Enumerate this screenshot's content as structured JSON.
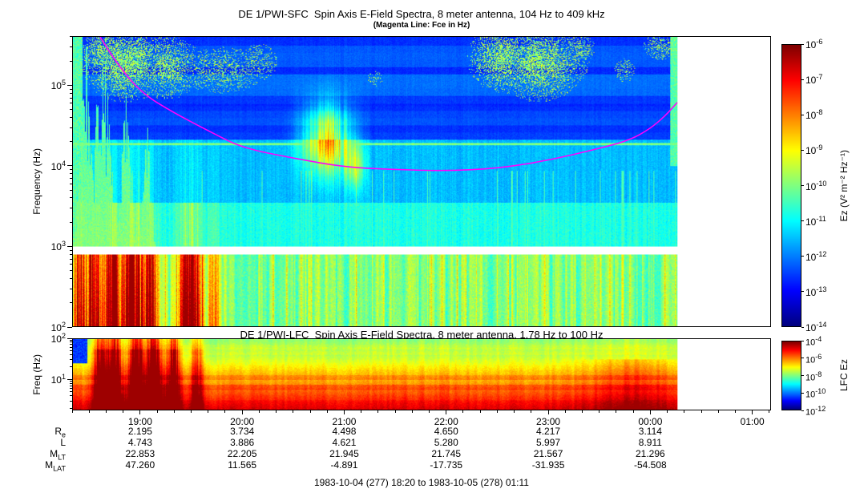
{
  "caption": "1983-10-04 (277) 18:20 to 1983-10-05 (278) 01:11",
  "chart_data": [
    {
      "id": "sfc",
      "type": "heatmap",
      "title": "DE 1/PWI-SFC  Spin Axis E-Field Spectra, 8 meter antenna, 104 Hz to 409 kHz",
      "subtitle": "(Magenta Line: Fce in Hz)",
      "ylabel": "Frequency (Hz)",
      "y_scale": "log",
      "y_range_hz": [
        100,
        409000
      ],
      "y_major_ticks_exp": [
        2,
        3,
        4,
        5
      ],
      "x_start": "18:20",
      "x_end": "01:11",
      "x_start_hours": 18.3333,
      "x_end_hours": 25.1833,
      "data_end_hours": 24.27,
      "x_minor_step_minutes": 10,
      "x_ticks": [
        {
          "hours": 19,
          "label": "19:00"
        },
        {
          "hours": 20,
          "label": "20:00"
        },
        {
          "hours": 21,
          "label": "21:00"
        },
        {
          "hours": 22,
          "label": "22:00"
        },
        {
          "hours": 23,
          "label": "23:00"
        },
        {
          "hours": 24,
          "label": "00:00"
        },
        {
          "hours": 25,
          "label": "01:00"
        }
      ],
      "colorbar": {
        "label": "Ez (V² m⁻² Hz⁻¹)",
        "colormap": "jet",
        "tick_exps": [
          -6,
          -7,
          -8,
          -9,
          -10,
          -11,
          -12,
          -13,
          -14
        ]
      },
      "fce_line": {
        "label": "Fce in Hz",
        "color": "#ff00ff",
        "points_hours_hz": [
          [
            18.6,
            409000
          ],
          [
            18.75,
            200000
          ],
          [
            19.0,
            83000
          ],
          [
            19.3,
            48000
          ],
          [
            19.7,
            26000
          ],
          [
            20.0,
            16800
          ],
          [
            20.5,
            12500
          ],
          [
            21.0,
            9700
          ],
          [
            21.5,
            9000
          ],
          [
            22.0,
            8700
          ],
          [
            22.5,
            9300
          ],
          [
            23.0,
            11700
          ],
          [
            23.5,
            16500
          ],
          [
            23.8,
            21000
          ],
          [
            24.0,
            29000
          ],
          [
            24.15,
            42000
          ],
          [
            24.27,
            62000
          ]
        ]
      },
      "render": {
        "receiver_gap_logf": [
          2.9,
          3.0
        ],
        "interference_line_lf": 4.28,
        "right_strip_start": 24.2,
        "left_strip_end": 18.42,
        "bands": [
          {
            "lf_max": 2.9,
            "base": 0.5,
            "name": "low-band-green"
          },
          {
            "lf_min": 2.9,
            "lf_max": 3.0,
            "name": "receiver-gap-white"
          },
          {
            "lf_min": 3.0,
            "lf_max": 3.55,
            "base": 0.4,
            "name": "hiss-cyan"
          },
          {
            "lf_min": 3.55,
            "lf_max": 4.33,
            "base": 0.31,
            "name": "mid-light-blue"
          },
          {
            "lf_min": 4.33,
            "base": 0.18,
            "name": "upper-blue-channels"
          }
        ],
        "low_bursts": [
          [
            18.4,
            0.055,
            0.4
          ],
          [
            18.55,
            0.05,
            0.35
          ],
          [
            18.72,
            0.06,
            0.5
          ],
          [
            18.92,
            0.07,
            0.55
          ],
          [
            19.1,
            0.05,
            0.4
          ],
          [
            19.48,
            0.08,
            0.55
          ],
          [
            19.72,
            0.04,
            0.25
          ]
        ],
        "towers": [
          [
            18.45,
            0.05,
            1.0
          ],
          [
            18.62,
            0.07,
            1.0
          ],
          [
            18.85,
            0.05,
            0.75
          ],
          [
            19.05,
            0.04,
            0.6
          ]
        ],
        "mid_events": [
          [
            20.82,
            0.16,
            4.35,
            0.3,
            0.55
          ],
          [
            21.1,
            0.07,
            4.0,
            0.2,
            0.25
          ]
        ],
        "upper_patches": [
          [
            18.62,
            0.1,
            5.45,
            0.18,
            0.8
          ],
          [
            18.85,
            0.22,
            5.3,
            0.25,
            0.9
          ],
          [
            19.25,
            0.18,
            5.25,
            0.22,
            0.7
          ],
          [
            19.8,
            0.25,
            5.2,
            0.18,
            0.45
          ],
          [
            20.15,
            0.12,
            5.3,
            0.15,
            0.4
          ],
          [
            21.3,
            0.06,
            5.1,
            0.08,
            0.25
          ],
          [
            22.55,
            0.18,
            5.35,
            0.22,
            0.8
          ],
          [
            22.9,
            0.25,
            5.3,
            0.25,
            0.85
          ],
          [
            23.3,
            0.1,
            5.45,
            0.12,
            0.5
          ],
          [
            23.75,
            0.07,
            5.2,
            0.1,
            0.35
          ],
          [
            24.1,
            0.1,
            5.5,
            0.1,
            0.5
          ]
        ]
      }
    },
    {
      "id": "lfc",
      "type": "heatmap",
      "title": "DE 1/PWI-LFC  Spin Axis E-Field Spectra, 8 meter antenna, 1.78 Hz to 100 Hz",
      "ylabel": "Freq (Hz)",
      "y_scale": "log",
      "y_range_hz": [
        1.78,
        100
      ],
      "y_major_ticks_exp": [
        1,
        2
      ],
      "colorbar": {
        "label": "LFC Ez",
        "colormap": "jet",
        "tick_exps": [
          -4,
          -6,
          -8,
          -10,
          -12
        ]
      },
      "render": {
        "base_top": 0.5,
        "base_slope": 0.235,
        "bursts": [
          [
            18.6,
            0.045,
            0.5
          ],
          [
            18.74,
            0.05,
            0.55
          ],
          [
            18.95,
            0.055,
            0.5
          ],
          [
            19.12,
            0.06,
            0.55
          ],
          [
            19.32,
            0.045,
            0.45
          ],
          [
            19.55,
            0.04,
            0.3
          ]
        ],
        "late_boost": [
          23.85,
          0.3,
          0.1
        ],
        "blue_patch": {
          "t_end": 18.47,
          "lf_min": 1.4
        }
      }
    },
    {
      "id": "ephemeris",
      "type": "table",
      "columns": [
        "19:00",
        "20:00",
        "21:00",
        "22:00",
        "23:00",
        "00:00"
      ],
      "rows": [
        {
          "base": "R",
          "sub": "e",
          "values": [
            "2.195",
            "3.734",
            "4.498",
            "4.650",
            "4.217",
            "3.114"
          ]
        },
        {
          "base": "L",
          "sub": "",
          "values": [
            "4.743",
            "3.886",
            "4.621",
            "5.280",
            "5.997",
            "8.911"
          ]
        },
        {
          "base": "M",
          "sub": "LT",
          "values": [
            "22.853",
            "22.205",
            "21.945",
            "21.745",
            "21.567",
            "21.296"
          ]
        },
        {
          "base": "M",
          "sub": "LAT",
          "values": [
            "47.260",
            "11.565",
            "-4.891",
            "-17.735",
            "-31.935",
            "-54.508"
          ]
        }
      ]
    }
  ]
}
